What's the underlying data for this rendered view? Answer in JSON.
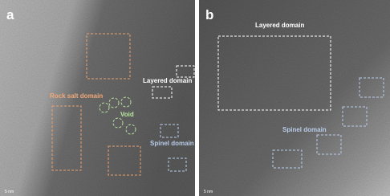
{
  "panels": [
    {
      "letter": "a",
      "labels": [
        "Rock salt domain",
        "Void",
        "Layered domain",
        "Spinel domain"
      ],
      "scale_bar": "5 nm"
    },
    {
      "letter": "b",
      "labels": [
        "Layered domain",
        "Spinel domain"
      ],
      "scale_bar": "5 nm"
    }
  ]
}
